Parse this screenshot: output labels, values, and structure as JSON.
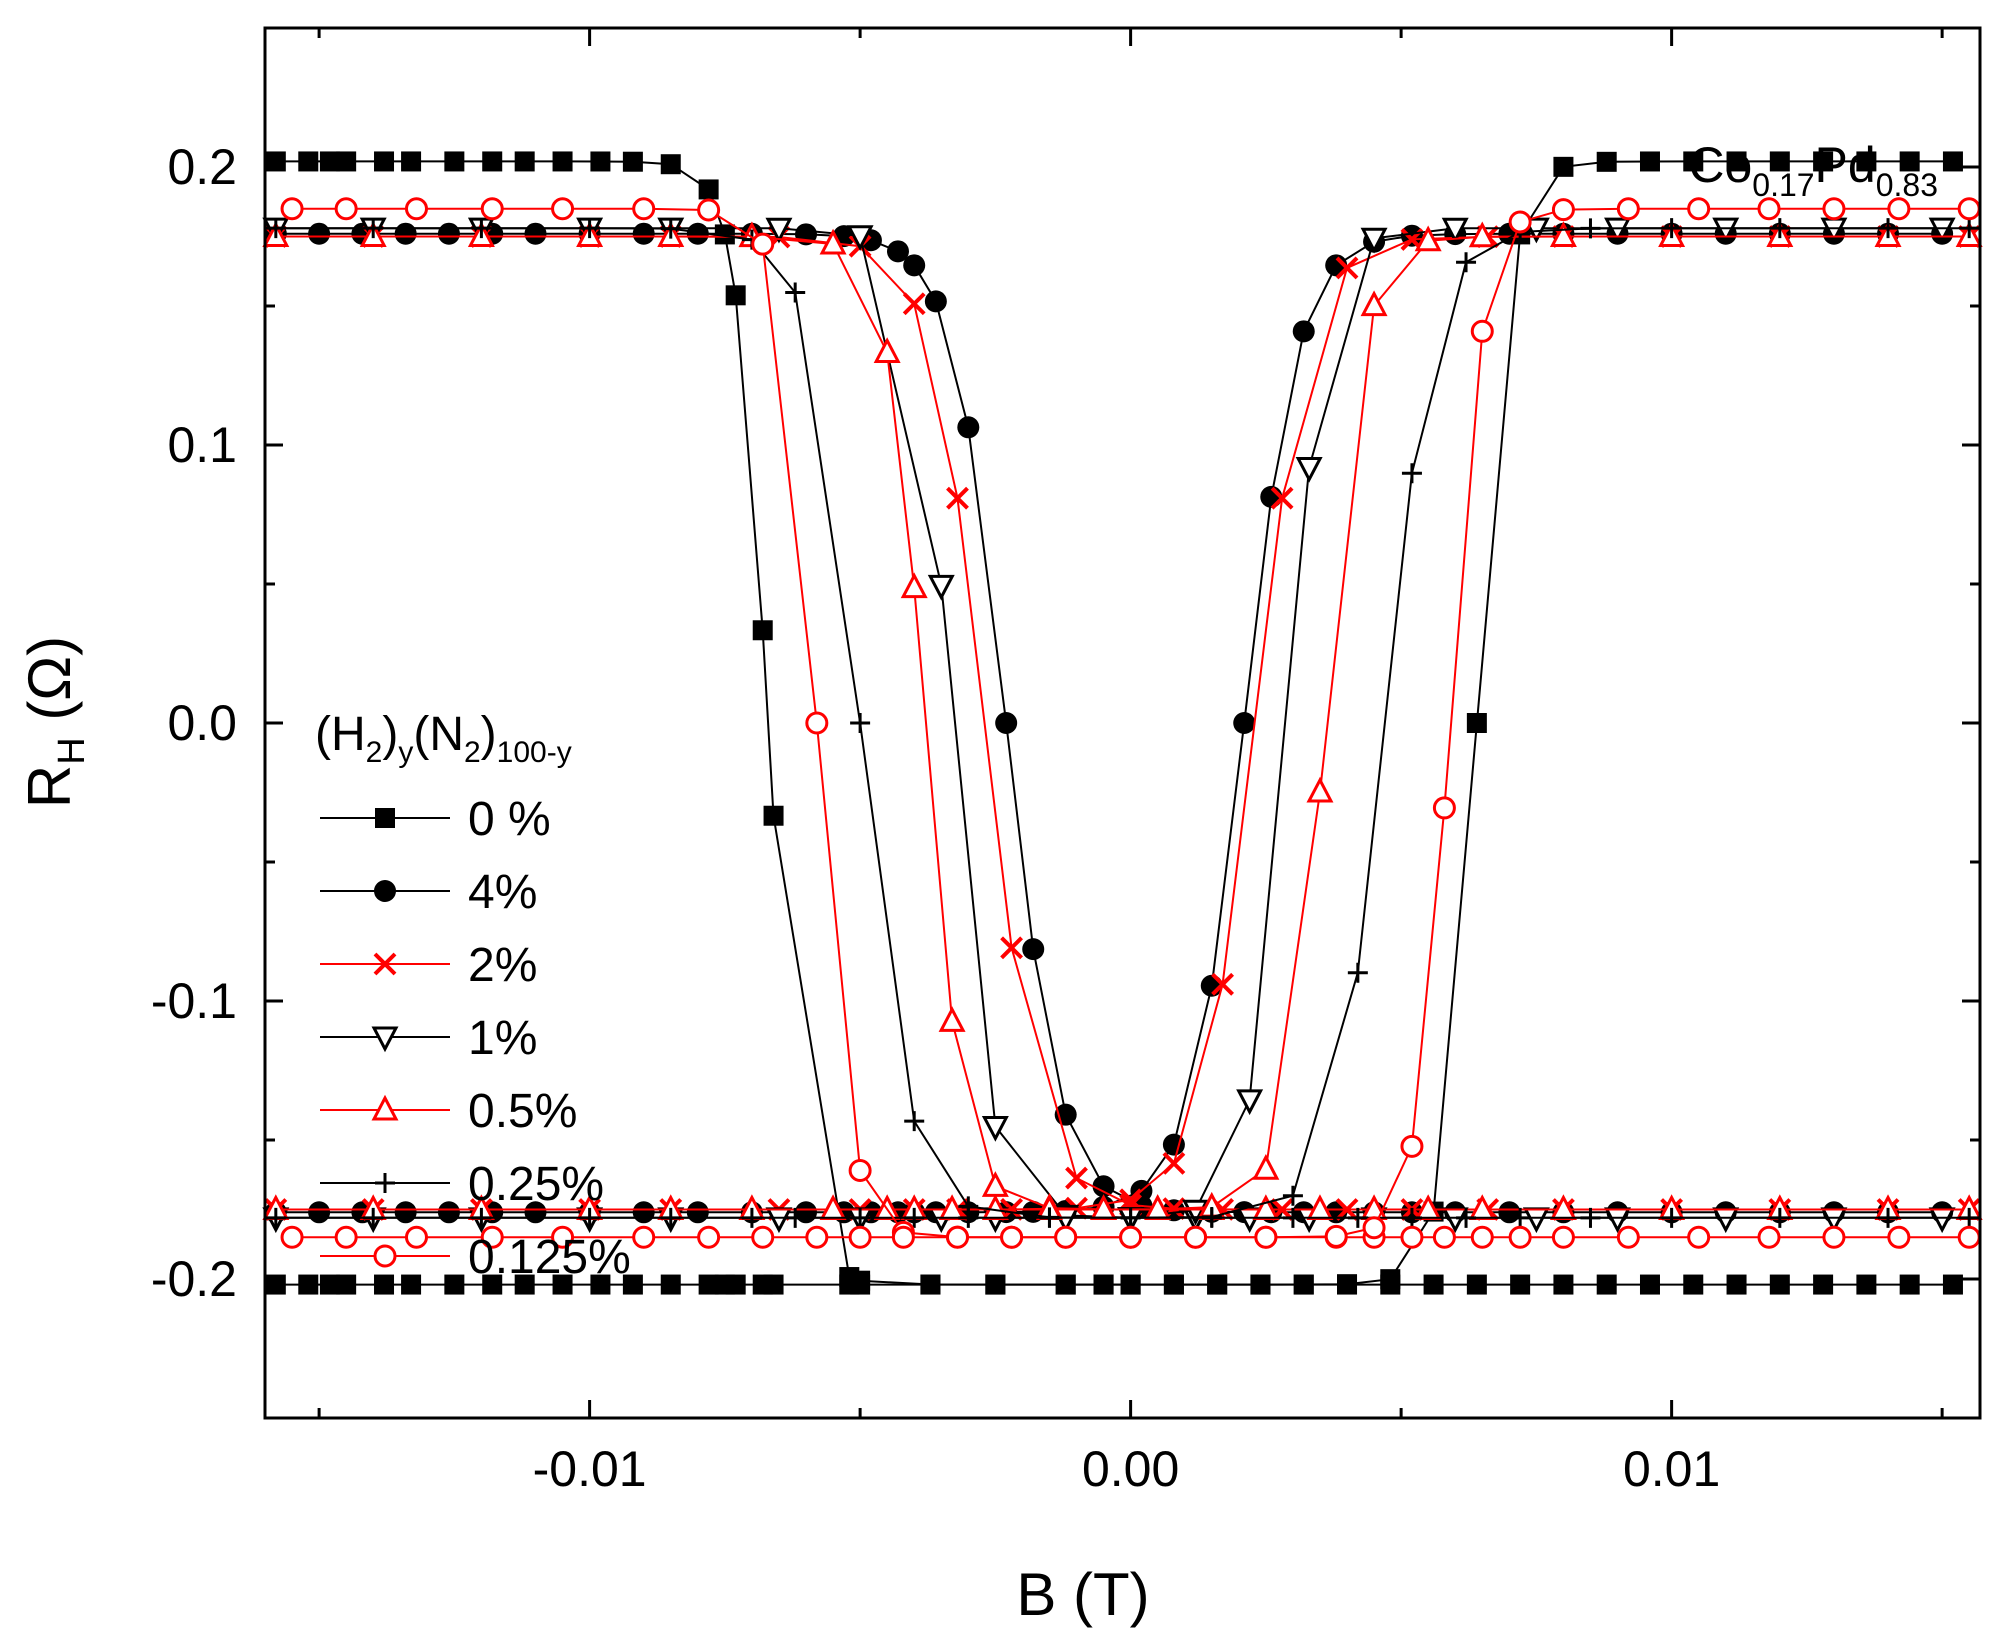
{
  "chart_data": {
    "type": "scatter",
    "title": "",
    "annotation": {
      "base1": "Co",
      "sub1": "0.17",
      "base2": "Pd",
      "sub2": "0.83"
    },
    "xlabel": "B (T)",
    "ylabel": {
      "base": "R",
      "sub": "H",
      "rest": " (Ω)"
    },
    "xlim": [
      -0.016,
      0.0157
    ],
    "ylim": [
      -0.25,
      0.25
    ],
    "xticks": [
      -0.01,
      0.0,
      0.01
    ],
    "xtick_labels": [
      "-0.01",
      "0.00",
      "0.01"
    ],
    "yticks": [
      -0.2,
      -0.1,
      0.0,
      0.1,
      0.2
    ],
    "ytick_labels": [
      "-0.2",
      "-0.1",
      "0.0",
      "0.1",
      "0.2"
    ],
    "legend": {
      "placement": "center-left",
      "title": {
        "p1": "(H",
        "s1": "2",
        "p2": ")",
        "s2": "y",
        "p3": "(N",
        "s3": "2",
        "p4": ")",
        "s4": "100-y"
      }
    },
    "series": [
      {
        "name": "0 %",
        "marker": "square",
        "color": "#000000",
        "Ms": 0.202,
        "Hc_down": -0.0067,
        "Hc_up": 0.0064,
        "w": 0.0006,
        "lag": 0.0016,
        "x": [
          -0.0158,
          -0.0152,
          -0.0148,
          -0.0145,
          -0.0138,
          -0.0133,
          -0.0125,
          -0.0118,
          -0.0112,
          -0.0105,
          -0.0098,
          -0.0092,
          -0.0085,
          -0.0078,
          -0.0075,
          -0.0073,
          -0.0068,
          -0.0066,
          -0.0052,
          -0.005,
          -0.0037,
          -0.0025,
          -0.0012,
          -0.0005,
          0.0,
          0.0008,
          0.0016,
          0.0024,
          0.0032,
          0.004,
          0.0048,
          0.0056,
          0.0064,
          0.0072,
          0.008,
          0.0088,
          0.0096,
          0.0104,
          0.0112,
          0.012,
          0.0128,
          0.0136,
          0.0144,
          0.0152
        ]
      },
      {
        "name": "4%",
        "marker": "circle",
        "color": "#000000",
        "Ms": 0.176,
        "Hc_down": -0.0023,
        "Hc_up": 0.0021,
        "w": 0.001,
        "lag": 0.0018,
        "x": [
          -0.0158,
          -0.015,
          -0.0142,
          -0.0134,
          -0.0126,
          -0.0118,
          -0.011,
          -0.01,
          -0.009,
          -0.008,
          -0.007,
          -0.006,
          -0.0053,
          -0.0048,
          -0.0043,
          -0.004,
          -0.0036,
          -0.003,
          -0.0023,
          -0.0018,
          -0.0012,
          -0.0005,
          0.0002,
          0.0008,
          0.0015,
          0.0021,
          0.0026,
          0.0032,
          0.0038,
          0.0045,
          0.0052,
          0.006,
          0.007,
          0.008,
          0.009,
          0.01,
          0.011,
          0.012,
          0.013,
          0.014,
          0.015
        ]
      },
      {
        "name": "2%",
        "marker": "cross",
        "color": "#ff0000",
        "Ms": 0.175,
        "Hc_down": -0.0027,
        "Hc_up": 0.0023,
        "w": 0.001,
        "lag": 0.0018,
        "x": [
          -0.0158,
          -0.014,
          -0.012,
          -0.01,
          -0.0085,
          -0.0065,
          -0.005,
          -0.004,
          -0.0032,
          -0.0022,
          -0.001,
          0.0,
          0.0008,
          0.0017,
          0.0028,
          0.004,
          0.0052,
          0.0066,
          0.008,
          0.01,
          0.012,
          0.014,
          0.0155
        ]
      },
      {
        "name": "1%",
        "marker": "tri_down",
        "color": "#000000",
        "Ms": 0.178,
        "Hc_down": -0.0033,
        "Hc_up": 0.0029,
        "w": 0.0007,
        "lag": 0.0016,
        "x": [
          -0.0158,
          -0.014,
          -0.012,
          -0.01,
          -0.0085,
          -0.0065,
          -0.005,
          -0.0035,
          -0.0025,
          -0.0012,
          0.0,
          0.0012,
          0.0022,
          0.0033,
          0.0045,
          0.006,
          0.0075,
          0.009,
          0.011,
          0.013,
          0.015
        ]
      },
      {
        "name": "0.5%",
        "marker": "tri_up",
        "color": "#ff0000",
        "Ms": 0.175,
        "Hc_down": -0.0038,
        "Hc_up": 0.0036,
        "w": 0.0007,
        "lag": 0.0016,
        "x": [
          -0.0158,
          -0.014,
          -0.012,
          -0.01,
          -0.0085,
          -0.007,
          -0.0055,
          -0.0045,
          -0.004,
          -0.0033,
          -0.0025,
          -0.0015,
          -0.0005,
          0.0005,
          0.0015,
          0.0025,
          0.0035,
          0.0045,
          0.0055,
          0.0065,
          0.008,
          0.01,
          0.012,
          0.014,
          0.0155
        ]
      },
      {
        "name": "0.25%",
        "marker": "plus",
        "color": "#000000",
        "Ms": 0.178,
        "Hc_down": -0.005,
        "Hc_up": 0.0047,
        "w": 0.0009,
        "lag": 0.0016,
        "x": [
          -0.0158,
          -0.014,
          -0.012,
          -0.01,
          -0.0085,
          -0.007,
          -0.0062,
          -0.005,
          -0.004,
          -0.003,
          -0.0015,
          0.0,
          0.0015,
          0.003,
          0.0042,
          0.0052,
          0.0062,
          0.0072,
          0.0085,
          0.01,
          0.012,
          0.014,
          0.0155
        ]
      },
      {
        "name": "0.125%",
        "marker": "circle_open",
        "color": "#ff0000",
        "Ms": 0.185,
        "Hc_down": -0.0058,
        "Hc_up": 0.0059,
        "w": 0.0006,
        "lag": 0.0014,
        "x": [
          -0.0155,
          -0.0145,
          -0.0132,
          -0.0118,
          -0.0105,
          -0.009,
          -0.0078,
          -0.0068,
          -0.0058,
          -0.005,
          -0.0042,
          -0.0032,
          -0.0022,
          -0.0012,
          0.0,
          0.0012,
          0.0025,
          0.0038,
          0.0045,
          0.0052,
          0.0058,
          0.0065,
          0.0072,
          0.008,
          0.0092,
          0.0105,
          0.0118,
          0.013,
          0.0142,
          0.0155
        ]
      }
    ]
  }
}
